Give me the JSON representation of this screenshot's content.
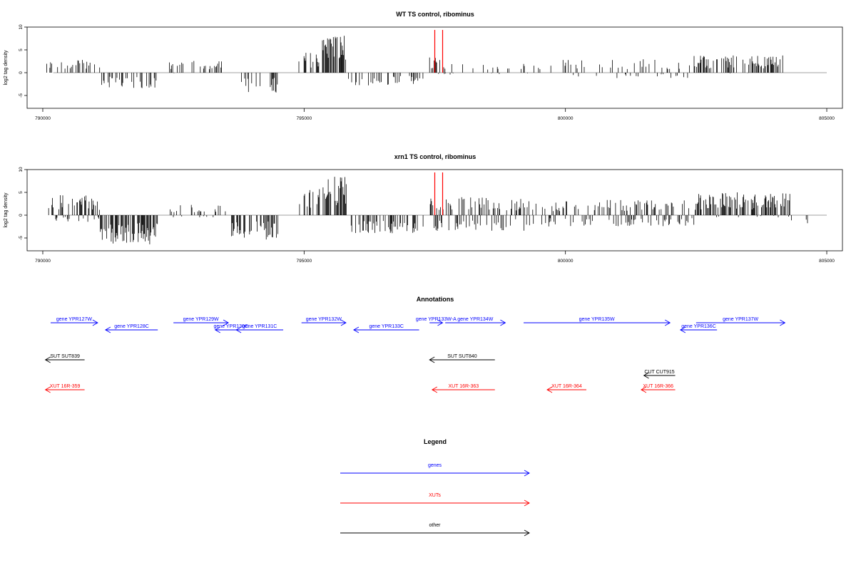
{
  "colors": {
    "gene": "#0000ff",
    "xut": "#ff0000",
    "other": "#000000",
    "zero_line": "#808080"
  },
  "chart_data": [
    {
      "type": "bar",
      "title": "WT TS control, ribominus",
      "ylabel": "log2 tag density",
      "xlim": [
        789700,
        805300
      ],
      "ylim": [
        -7.5,
        10
      ],
      "xticks": [
        790000,
        795000,
        800000,
        805000
      ],
      "yticks": [
        10,
        5,
        0,
        -5
      ],
      "highlight_lines_x": [
        797500,
        797650
      ],
      "series": [
        {
          "x": [
            790000,
            790400
          ],
          "values": [
            2.5,
            -0.2
          ],
          "density": 0.25
        },
        {
          "x": [
            790400,
            791100
          ],
          "values": [
            2.8,
            -0.5
          ],
          "density": 0.3
        },
        {
          "x": [
            791100,
            792200
          ],
          "values": [
            0.2,
            -3.5
          ],
          "density": 0.35
        },
        {
          "x": [
            792400,
            793200
          ],
          "values": [
            2.6,
            -0.2
          ],
          "density": 0.25
        },
        {
          "x": [
            793200,
            793500
          ],
          "values": [
            3.2,
            0
          ],
          "density": 0.2
        },
        {
          "x": [
            793800,
            794500
          ],
          "values": [
            0.3,
            -4.5
          ],
          "density": 0.3
        },
        {
          "x": [
            794900,
            795350
          ],
          "values": [
            4.5,
            0
          ],
          "density": 0.35
        },
        {
          "x": [
            795350,
            795800
          ],
          "values": [
            8.5,
            0.5
          ],
          "density": 0.7
        },
        {
          "x": [
            795800,
            797300
          ],
          "values": [
            0.5,
            -2.8
          ],
          "density": 0.3
        },
        {
          "x": [
            797400,
            797800
          ],
          "values": [
            3.5,
            -0.5
          ],
          "density": 0.4
        },
        {
          "x": [
            797800,
            799500
          ],
          "values": [
            2.0,
            -0.3
          ],
          "density": 0.12
        },
        {
          "x": [
            799500,
            802400
          ],
          "values": [
            3.0,
            -1.2
          ],
          "density": 0.2
        },
        {
          "x": [
            802400,
            804200
          ],
          "values": [
            3.8,
            -0.3
          ],
          "density": 0.4
        },
        {
          "x": [
            804400,
            804600
          ],
          "values": [
            0,
            -1.0
          ],
          "density": 0.05
        }
      ]
    },
    {
      "type": "bar",
      "title": "xrn1 TS control, ribominus",
      "ylabel": "log2 tag density",
      "xlim": [
        789700,
        805300
      ],
      "ylim": [
        -7.5,
        10
      ],
      "xticks": [
        790000,
        795000,
        800000,
        805000
      ],
      "yticks": [
        10,
        5,
        0,
        -5
      ],
      "highlight_lines_x": [
        797500,
        797650
      ],
      "series": [
        {
          "x": [
            790100,
            791100
          ],
          "values": [
            4.5,
            -1.5
          ],
          "density": 0.55
        },
        {
          "x": [
            791100,
            792200
          ],
          "values": [
            0.5,
            -6.5
          ],
          "density": 0.7
        },
        {
          "x": [
            792400,
            793500
          ],
          "values": [
            2.5,
            -0.5
          ],
          "density": 0.35
        },
        {
          "x": [
            793600,
            794500
          ],
          "values": [
            0.5,
            -5.5
          ],
          "density": 0.5
        },
        {
          "x": [
            794900,
            795350
          ],
          "values": [
            6.0,
            0
          ],
          "density": 0.4
        },
        {
          "x": [
            795350,
            795850
          ],
          "values": [
            8.5,
            0.5
          ],
          "density": 0.75
        },
        {
          "x": [
            795900,
            797300
          ],
          "values": [
            0.5,
            -4.0
          ],
          "density": 0.45
        },
        {
          "x": [
            797400,
            799300
          ],
          "values": [
            4.0,
            -3.5
          ],
          "density": 0.6
        },
        {
          "x": [
            799300,
            802500
          ],
          "values": [
            3.5,
            -2.5
          ],
          "density": 0.45
        },
        {
          "x": [
            802500,
            804300
          ],
          "values": [
            5.0,
            -0.5
          ],
          "density": 0.65
        },
        {
          "x": [
            804300,
            804700
          ],
          "values": [
            1.0,
            -2.5
          ],
          "density": 0.2
        }
      ]
    }
  ],
  "annotations": {
    "title": "Annotations",
    "features": [
      {
        "label": "gene YPR127W",
        "class": "gene",
        "dir": 1,
        "start": 790150,
        "end": 791050,
        "row": 1
      },
      {
        "label": "gene YPR128C",
        "class": "gene",
        "dir": -1,
        "start": 791200,
        "end": 792200,
        "row": 2
      },
      {
        "label": "gene YPR129W",
        "class": "gene",
        "dir": 1,
        "start": 792500,
        "end": 793550,
        "row": 1
      },
      {
        "label": "gene YPR130C",
        "class": "gene",
        "dir": -1,
        "start": 793300,
        "end": 793900,
        "row": 2
      },
      {
        "label": "gene YPR131C",
        "class": "gene",
        "dir": -1,
        "start": 793700,
        "end": 794600,
        "row": 2
      },
      {
        "label": "gene YPR132W",
        "class": "gene",
        "dir": 1,
        "start": 794950,
        "end": 795800,
        "row": 1
      },
      {
        "label": "gene YPR133C",
        "class": "gene",
        "dir": -1,
        "start": 795950,
        "end": 797200,
        "row": 2
      },
      {
        "label": "gene YPR133W-A",
        "class": "gene",
        "dir": 1,
        "start": 797400,
        "end": 797650,
        "row": 1
      },
      {
        "label": "gene YPR134W",
        "class": "gene",
        "dir": 1,
        "start": 797700,
        "end": 798850,
        "row": 1
      },
      {
        "label": "gene YPR135W",
        "class": "gene",
        "dir": 1,
        "start": 799200,
        "end": 802000,
        "row": 1
      },
      {
        "label": "gene YPR136C",
        "class": "gene",
        "dir": -1,
        "start": 802200,
        "end": 802900,
        "row": 2
      },
      {
        "label": "gene YPR137W",
        "class": "gene",
        "dir": 1,
        "start": 802500,
        "end": 804200,
        "row": 1
      },
      {
        "label": "SUT SUT839",
        "class": "other",
        "dir": -1,
        "start": 790050,
        "end": 790800,
        "row": 3
      },
      {
        "label": "SUT SUT840",
        "class": "other",
        "dir": -1,
        "start": 797400,
        "end": 798650,
        "row": 3
      },
      {
        "label": "CUT CUT915",
        "class": "other",
        "dir": -1,
        "start": 801500,
        "end": 802100,
        "row": 4
      },
      {
        "label": "XUT 16R-359",
        "class": "xut",
        "dir": -1,
        "start": 790050,
        "end": 790800,
        "row": 5
      },
      {
        "label": "XUT 16R-363",
        "class": "xut",
        "dir": -1,
        "start": 797450,
        "end": 798650,
        "row": 5
      },
      {
        "label": "XUT 16R-364",
        "class": "xut",
        "dir": -1,
        "start": 799650,
        "end": 800400,
        "row": 5
      },
      {
        "label": "XUT 16R-366",
        "class": "xut",
        "dir": -1,
        "start": 801450,
        "end": 802100,
        "row": 5
      }
    ]
  },
  "legend": {
    "title": "Legend",
    "items": [
      {
        "label": "genes",
        "class": "gene"
      },
      {
        "label": "XUTs",
        "class": "xut"
      },
      {
        "label": "other",
        "class": "other"
      }
    ]
  }
}
